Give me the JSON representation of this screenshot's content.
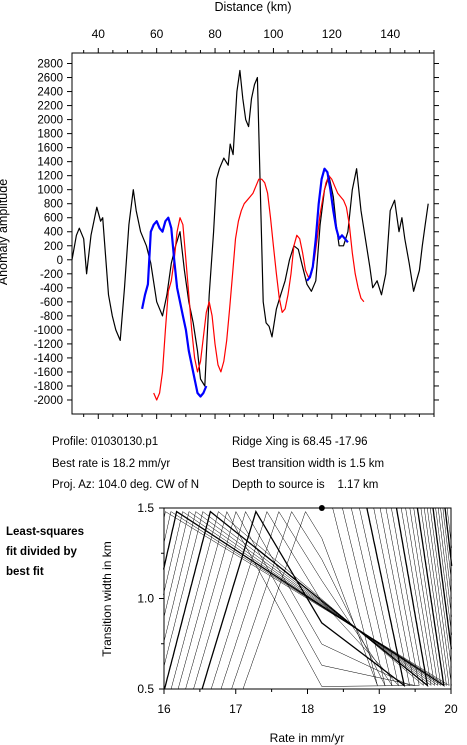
{
  "top_chart": {
    "xlabel": "Distance (km)",
    "ylabel": "Anomaly amplitude",
    "x_ticks": [
      40,
      60,
      80,
      100,
      120,
      140
    ],
    "y_ticks": [
      -2000,
      -1800,
      -1600,
      -1400,
      -1200,
      -1000,
      -800,
      -600,
      -400,
      -200,
      0,
      200,
      400,
      600,
      800,
      1000,
      1200,
      1400,
      1600,
      1800,
      2000,
      2200,
      2400,
      2600,
      2800
    ],
    "xlim": [
      31,
      155
    ],
    "ylim": [
      -2200,
      2950
    ]
  },
  "info": {
    "profile": "Profile: 01030130.p1",
    "ridge_xing": "Ridge Xing is 68.45 -17.96",
    "best_rate": "Best rate is 18.2 mm/yr",
    "best_width": "Best transition width is 1.5 km",
    "proj_az": "Proj. Az: 104.0 deg. CW of N",
    "depth": "Depth to source is    1.17 km"
  },
  "side_note": {
    "line1": "Least-squares",
    "line2": "fit divided by",
    "line3": "best fit"
  },
  "bottom_chart": {
    "xlabel": "Rate in mm/yr",
    "ylabel": "Transition width in km",
    "x_ticks": [
      "16",
      "17",
      "18",
      "19",
      "20"
    ],
    "y_ticks": [
      "0.5",
      "1.0",
      "1.5"
    ],
    "best_fit_marker": {
      "rate": 18.2,
      "width": 1.5
    }
  },
  "chart_data": [
    {
      "type": "line",
      "xlabel": "Distance (km)",
      "ylabel": "Anomaly amplitude",
      "xlim": [
        31,
        155
      ],
      "ylim": [
        -2200,
        2950
      ],
      "grid": false,
      "series": [
        {
          "color": "#000000",
          "x": [
            31,
            32.5,
            33.5,
            35,
            36,
            37.5,
            38.5,
            39.5,
            40.8,
            41.5,
            43.5,
            44.8,
            46,
            47.5,
            49,
            50.5,
            52,
            53,
            54.5,
            56.5,
            58,
            60,
            62,
            63.5,
            65,
            66.5,
            68,
            69.5,
            71,
            72.5,
            74,
            75,
            76.5,
            78,
            79.5,
            80.5,
            81.5,
            83,
            84.5,
            85.2,
            86.2,
            87.5,
            88.5,
            89.5,
            90.5,
            91.5,
            92.5,
            93.5,
            94.5,
            95.5,
            96.5,
            97.5,
            98.5,
            99.5,
            101,
            102.5,
            104,
            105.5,
            107,
            108.5,
            110,
            111.5,
            113,
            114.5,
            116,
            117.5,
            119,
            120.5,
            121.5,
            122.5,
            124,
            125.5,
            127,
            128.5,
            130,
            131.5,
            133,
            134,
            135.5,
            137,
            138.5,
            140,
            141.5,
            143,
            144,
            145,
            146.5,
            148,
            149,
            150,
            151,
            152,
            153
          ],
          "y": [
            0,
            350,
            450,
            300,
            -200,
            350,
            550,
            750,
            550,
            600,
            -500,
            -800,
            -1000,
            -1150,
            -400,
            500,
            1000,
            700,
            400,
            200,
            -50,
            -600,
            -800,
            -500,
            -50,
            200,
            400,
            -150,
            -600,
            -900,
            -1300,
            -1700,
            -1800,
            -500,
            400,
            1150,
            1300,
            1450,
            1350,
            1650,
            1500,
            2400,
            2700,
            2300,
            2000,
            1900,
            2300,
            2500,
            2600,
            1000,
            -600,
            -900,
            -950,
            -1100,
            -700,
            -500,
            -300,
            0,
            200,
            150,
            -100,
            -350,
            -450,
            -300,
            500,
            1000,
            1200,
            900,
            500,
            200,
            200,
            400,
            1000,
            1300,
            700,
            300,
            -100,
            -400,
            -300,
            -500,
            -200,
            700,
            850,
            400,
            600,
            300,
            -50,
            -450,
            -300,
            -150,
            200,
            500,
            800
          ]
        },
        {
          "color": "#ff0000",
          "x": [
            59,
            60,
            61,
            62,
            63,
            64,
            65,
            66,
            67,
            68,
            69,
            70,
            71,
            72,
            73,
            74,
            75,
            76,
            77,
            78,
            79,
            80,
            81,
            82,
            83,
            84,
            85,
            86,
            87,
            88,
            89,
            90,
            91,
            92,
            93,
            94,
            95,
            96,
            97,
            98,
            99,
            100,
            101,
            102,
            103,
            104,
            105,
            106,
            107,
            108,
            109,
            110,
            111,
            112,
            113,
            114,
            115,
            116,
            117,
            118,
            119,
            120,
            121,
            122,
            123,
            124,
            125,
            126,
            127,
            128,
            129,
            130,
            131
          ],
          "y": [
            -1900,
            -2000,
            -1900,
            -1600,
            -1000,
            -450,
            -300,
            0,
            400,
            600,
            500,
            0,
            -500,
            -1000,
            -1400,
            -1600,
            -1450,
            -1100,
            -750,
            -600,
            -800,
            -1200,
            -1500,
            -1600,
            -1450,
            -1150,
            -700,
            -200,
            300,
            550,
            700,
            800,
            850,
            900,
            950,
            1050,
            1150,
            1150,
            1100,
            950,
            600,
            200,
            -200,
            -550,
            -750,
            -700,
            -500,
            -200,
            200,
            350,
            300,
            100,
            -150,
            -250,
            -200,
            0,
            300,
            650,
            900,
            1100,
            1200,
            1150,
            1050,
            950,
            900,
            850,
            750,
            500,
            100,
            -200,
            -400,
            -550,
            -600
          ]
        },
        {
          "color": "#0000ff",
          "x": [
            55,
            56,
            57,
            58,
            59,
            60,
            61,
            62,
            63,
            64,
            65,
            66,
            67,
            68,
            69,
            70,
            71,
            72,
            73,
            74,
            75,
            76,
            77
          ],
          "y": [
            -700,
            -500,
            -350,
            400,
            500,
            550,
            450,
            400,
            550,
            600,
            450,
            0,
            -400,
            -600,
            -800,
            -1000,
            -1300,
            -1500,
            -1700,
            -1900,
            -1950,
            -1900,
            -1800
          ]
        },
        {
          "color": "#0000ff",
          "x": [
            111.5,
            112.5,
            113.5,
            114.5,
            115.5,
            116.5,
            117.5,
            118.5,
            119.5,
            120.5,
            121.5,
            122.5,
            123.5,
            124.5,
            125.5
          ],
          "y": [
            -300,
            -250,
            -100,
            300,
            800,
            1150,
            1300,
            1250,
            1000,
            700,
            450,
            300,
            350,
            300,
            250
          ]
        }
      ]
    },
    {
      "type": "contour",
      "xlabel": "Rate in mm/yr",
      "ylabel": "Transition width in km",
      "xlim": [
        16,
        20
      ],
      "ylim": [
        0.5,
        1.5
      ],
      "best_fit": {
        "rate": 18.2,
        "width": 1.5
      }
    }
  ]
}
